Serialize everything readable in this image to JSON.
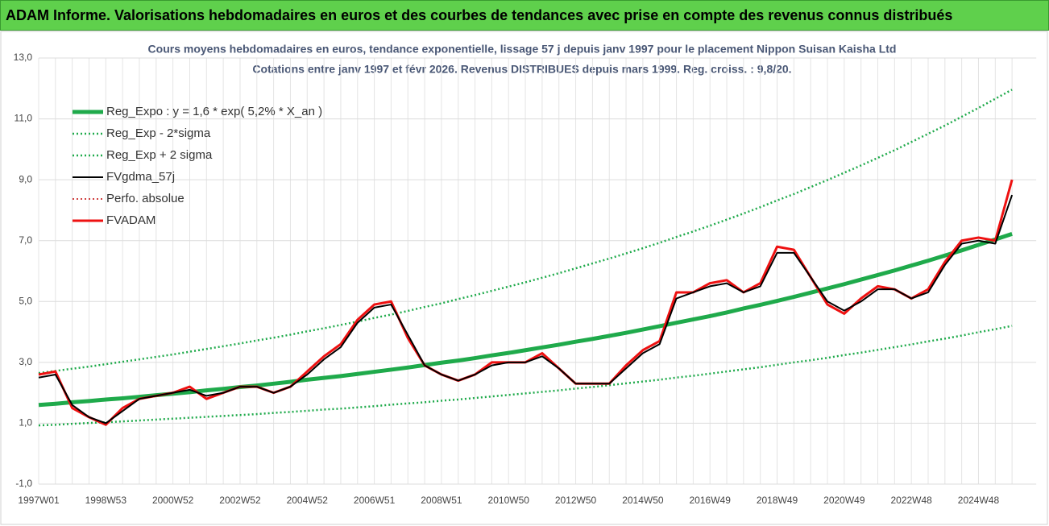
{
  "header": {
    "title": "ADAM Informe. Valorisations hebdomadaires en euros et des courbes de tendances avec prise en compte des revenus connus distribués"
  },
  "chart_data": {
    "type": "line",
    "title": "Cours moyens hebdomadaires en euros, tendance exponentielle, lissage 57 j depuis janv 1997 pour le placement Nippon Suisan Kaisha Ltd",
    "subtitle": "Cotations entre janv 1997 et févr 2026. Revenus DISTRIBUES depuis mars 1999. Reg. croiss. : 9,8/20.",
    "categories": [
      "1997W01",
      null,
      null,
      null,
      "1998W53",
      null,
      null,
      null,
      "2000W52",
      null,
      null,
      null,
      "2002W52",
      null,
      null,
      null,
      "2004W52",
      null,
      null,
      null,
      "2006W51",
      null,
      null,
      null,
      "2008W51",
      null,
      null,
      null,
      "2010W50",
      null,
      null,
      null,
      "2012W50",
      null,
      null,
      null,
      "2014W50",
      null,
      null,
      null,
      "2016W49",
      null,
      null,
      null,
      "2018W49",
      null,
      null,
      null,
      "2020W49",
      null,
      null,
      null,
      "2022W48",
      null,
      null,
      null,
      "2024W48",
      null,
      null
    ],
    "ylim": [
      -1,
      13
    ],
    "yticks": [
      {
        "value": -1,
        "label": "-1,0"
      },
      {
        "value": 1,
        "label": "1,0"
      },
      {
        "value": 3,
        "label": "3,0"
      },
      {
        "value": 5,
        "label": "5,0"
      },
      {
        "value": 7,
        "label": "7,0"
      },
      {
        "value": 9,
        "label": "9,0"
      },
      {
        "value": 11,
        "label": "11,0"
      },
      {
        "value": 13,
        "label": "13,0"
      }
    ],
    "grid": true,
    "legend": "upper left",
    "series": [
      {
        "name": "Reg_Expo : y = 1,6 * exp( 5,2% *  X_an )",
        "color": "#1faa4b",
        "width": 5,
        "dash": "solid",
        "values": [
          1.6,
          1.64,
          1.69,
          1.73,
          1.78,
          1.82,
          1.87,
          1.92,
          1.97,
          2.02,
          2.08,
          2.13,
          2.19,
          2.24,
          2.3,
          2.36,
          2.43,
          2.49,
          2.55,
          2.62,
          2.69,
          2.76,
          2.83,
          2.91,
          2.99,
          3.06,
          3.14,
          3.23,
          3.31,
          3.4,
          3.49,
          3.58,
          3.68,
          3.77,
          3.87,
          3.97,
          4.08,
          4.19,
          4.3,
          4.41,
          4.52,
          4.64,
          4.77,
          4.89,
          5.02,
          5.15,
          5.29,
          5.43,
          5.57,
          5.72,
          5.87,
          6.02,
          6.18,
          6.34,
          6.51,
          6.68,
          6.86,
          7.04,
          7.22
        ]
      },
      {
        "name": "Reg_Exp - 2*sigma",
        "color": "#1faa4b",
        "width": 2.5,
        "dash": "dotted",
        "values": [
          0.93,
          0.95,
          0.98,
          1.01,
          1.03,
          1.06,
          1.09,
          1.12,
          1.15,
          1.18,
          1.21,
          1.24,
          1.27,
          1.3,
          1.34,
          1.37,
          1.41,
          1.45,
          1.48,
          1.52,
          1.56,
          1.61,
          1.65,
          1.69,
          1.74,
          1.78,
          1.83,
          1.88,
          1.93,
          1.98,
          2.03,
          2.08,
          2.14,
          2.19,
          2.25,
          2.31,
          2.37,
          2.43,
          2.5,
          2.56,
          2.63,
          2.7,
          2.77,
          2.84,
          2.92,
          3.0,
          3.07,
          3.15,
          3.24,
          3.32,
          3.41,
          3.5,
          3.59,
          3.69,
          3.78,
          3.88,
          3.99,
          4.09,
          4.2
        ]
      },
      {
        "name": "Reg_Exp + 2 sigma",
        "color": "#1faa4b",
        "width": 2.5,
        "dash": "dotted",
        "values": [
          2.65,
          2.72,
          2.79,
          2.86,
          2.94,
          3.02,
          3.1,
          3.18,
          3.26,
          3.35,
          3.44,
          3.53,
          3.62,
          3.72,
          3.81,
          3.91,
          4.02,
          4.12,
          4.23,
          4.34,
          4.46,
          4.57,
          4.69,
          4.82,
          4.94,
          5.08,
          5.21,
          5.35,
          5.49,
          5.63,
          5.78,
          5.93,
          6.09,
          6.25,
          6.41,
          6.58,
          6.75,
          6.93,
          7.12,
          7.3,
          7.49,
          7.69,
          7.89,
          8.1,
          8.32,
          8.53,
          8.76,
          8.99,
          9.23,
          9.47,
          9.72,
          9.97,
          10.24,
          10.51,
          10.78,
          11.07,
          11.36,
          11.66,
          11.96
        ]
      },
      {
        "name": "FVgdma_57j",
        "color": "#000000",
        "width": 2,
        "dash": "solid",
        "values": [
          2.5,
          2.6,
          1.6,
          1.2,
          1.0,
          1.4,
          1.8,
          1.9,
          2.0,
          2.1,
          1.9,
          2.0,
          2.2,
          2.2,
          2.0,
          2.2,
          2.6,
          3.1,
          3.5,
          4.3,
          4.8,
          4.9,
          3.9,
          2.9,
          2.6,
          2.4,
          2.6,
          2.9,
          3.0,
          3.0,
          3.2,
          2.8,
          2.3,
          2.3,
          2.3,
          2.8,
          3.3,
          3.6,
          5.1,
          5.3,
          5.5,
          5.6,
          5.3,
          5.5,
          6.6,
          6.6,
          5.8,
          5.0,
          4.7,
          5.0,
          5.4,
          5.4,
          5.1,
          5.3,
          6.2,
          6.9,
          7.0,
          6.9,
          8.5
        ]
      },
      {
        "name": "Perfo. absolue",
        "color": "#c00000",
        "width": 1.5,
        "dash": "dotted",
        "values": [
          2.6,
          2.7,
          1.5,
          1.2,
          0.95,
          1.5,
          1.8,
          1.9,
          2.0,
          2.2,
          1.8,
          2.0,
          2.2,
          2.2,
          2.0,
          2.2,
          2.7,
          3.2,
          3.6,
          4.4,
          4.9,
          5.0,
          3.8,
          2.9,
          2.6,
          2.4,
          2.6,
          3.0,
          3.0,
          3.0,
          3.3,
          2.8,
          2.3,
          2.3,
          2.3,
          2.9,
          3.4,
          3.7,
          5.3,
          5.3,
          5.6,
          5.7,
          5.3,
          5.6,
          6.8,
          6.7,
          5.8,
          4.9,
          4.6,
          5.1,
          5.5,
          5.4,
          5.1,
          5.4,
          6.3,
          7.0,
          7.1,
          7.0,
          9.0
        ]
      },
      {
        "name": "FVADAM",
        "color": "#ee1111",
        "width": 3,
        "dash": "solid",
        "values": [
          2.6,
          2.7,
          1.5,
          1.2,
          0.95,
          1.5,
          1.8,
          1.9,
          2.0,
          2.2,
          1.8,
          2.0,
          2.2,
          2.2,
          2.0,
          2.2,
          2.7,
          3.2,
          3.6,
          4.4,
          4.9,
          5.0,
          3.8,
          2.9,
          2.6,
          2.4,
          2.6,
          3.0,
          3.0,
          3.0,
          3.3,
          2.8,
          2.3,
          2.3,
          2.3,
          2.9,
          3.4,
          3.7,
          5.3,
          5.3,
          5.6,
          5.7,
          5.3,
          5.6,
          6.8,
          6.7,
          5.8,
          4.9,
          4.6,
          5.1,
          5.5,
          5.4,
          5.1,
          5.4,
          6.3,
          7.0,
          7.1,
          7.0,
          9.0
        ]
      }
    ]
  }
}
